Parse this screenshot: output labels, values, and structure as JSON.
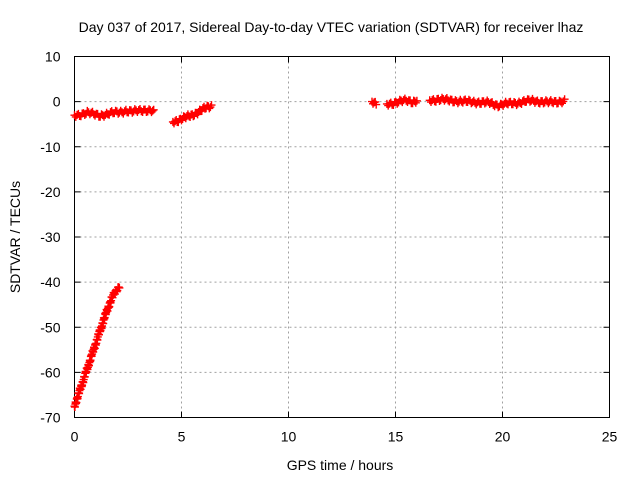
{
  "chart_data": {
    "type": "scatter",
    "title": "Day 037 of 2017, Sidereal Day-to-day VTEC variation (SDTVAR) for receiver lhaz",
    "xlabel": "GPS time / hours",
    "ylabel": "SDTVAR / TECUs",
    "xlim": [
      0,
      25
    ],
    "ylim": [
      -70,
      10
    ],
    "xticks": [
      0,
      5,
      10,
      15,
      20,
      25
    ],
    "yticks": [
      10,
      0,
      -10,
      -20,
      -30,
      -40,
      -50,
      -60,
      -70
    ],
    "grid": true,
    "marker": "+",
    "series": [
      {
        "name": "SDTVAR",
        "color": "#ff0000",
        "segments": [
          {
            "x": [
              0.0,
              0.25,
              0.5,
              0.75,
              1.0,
              1.25,
              1.5,
              1.75,
              2.0,
              2.1
            ],
            "y": [
              -67.5,
              -64.0,
              -60.5,
              -57.0,
              -53.5,
              -50.0,
              -46.5,
              -43.5,
              -41.5,
              -40.8
            ]
          },
          {
            "x": [
              0.0,
              0.3,
              0.6,
              0.9,
              1.2,
              1.5,
              1.8,
              2.1,
              2.4,
              2.7,
              3.0,
              3.3,
              3.6,
              3.7
            ],
            "y": [
              -3.0,
              -2.8,
              -2.5,
              -2.8,
              -3.0,
              -2.8,
              -2.5,
              -2.3,
              -2.0,
              -2.3,
              -2.0,
              -1.8,
              -2.0,
              -2.3
            ]
          },
          {
            "x": [
              4.6,
              4.9,
              5.2,
              5.5,
              5.8,
              6.1,
              6.4
            ],
            "y": [
              -4.5,
              -4.0,
              -3.5,
              -3.0,
              -2.2,
              -1.5,
              -1.0
            ]
          },
          {
            "x": [
              13.9,
              14.1
            ],
            "y": [
              0.0,
              -0.3
            ]
          },
          {
            "x": [
              14.6,
              14.9,
              15.2,
              15.5,
              15.8,
              16.0
            ],
            "y": [
              -0.5,
              -0.3,
              0.0,
              0.2,
              0.0,
              0.3
            ]
          },
          {
            "x": [
              16.6,
              17.0,
              17.4,
              17.8,
              18.2,
              18.6,
              19.0,
              19.4,
              19.8,
              20.2,
              20.6,
              21.0,
              21.4,
              21.8,
              22.2,
              22.6,
              22.9
            ],
            "y": [
              0.3,
              0.5,
              0.3,
              0.2,
              0.0,
              0.0,
              -0.2,
              -0.3,
              -0.8,
              -0.5,
              -0.3,
              0.0,
              0.2,
              0.0,
              -0.2,
              0.0,
              0.2
            ]
          }
        ]
      }
    ]
  }
}
